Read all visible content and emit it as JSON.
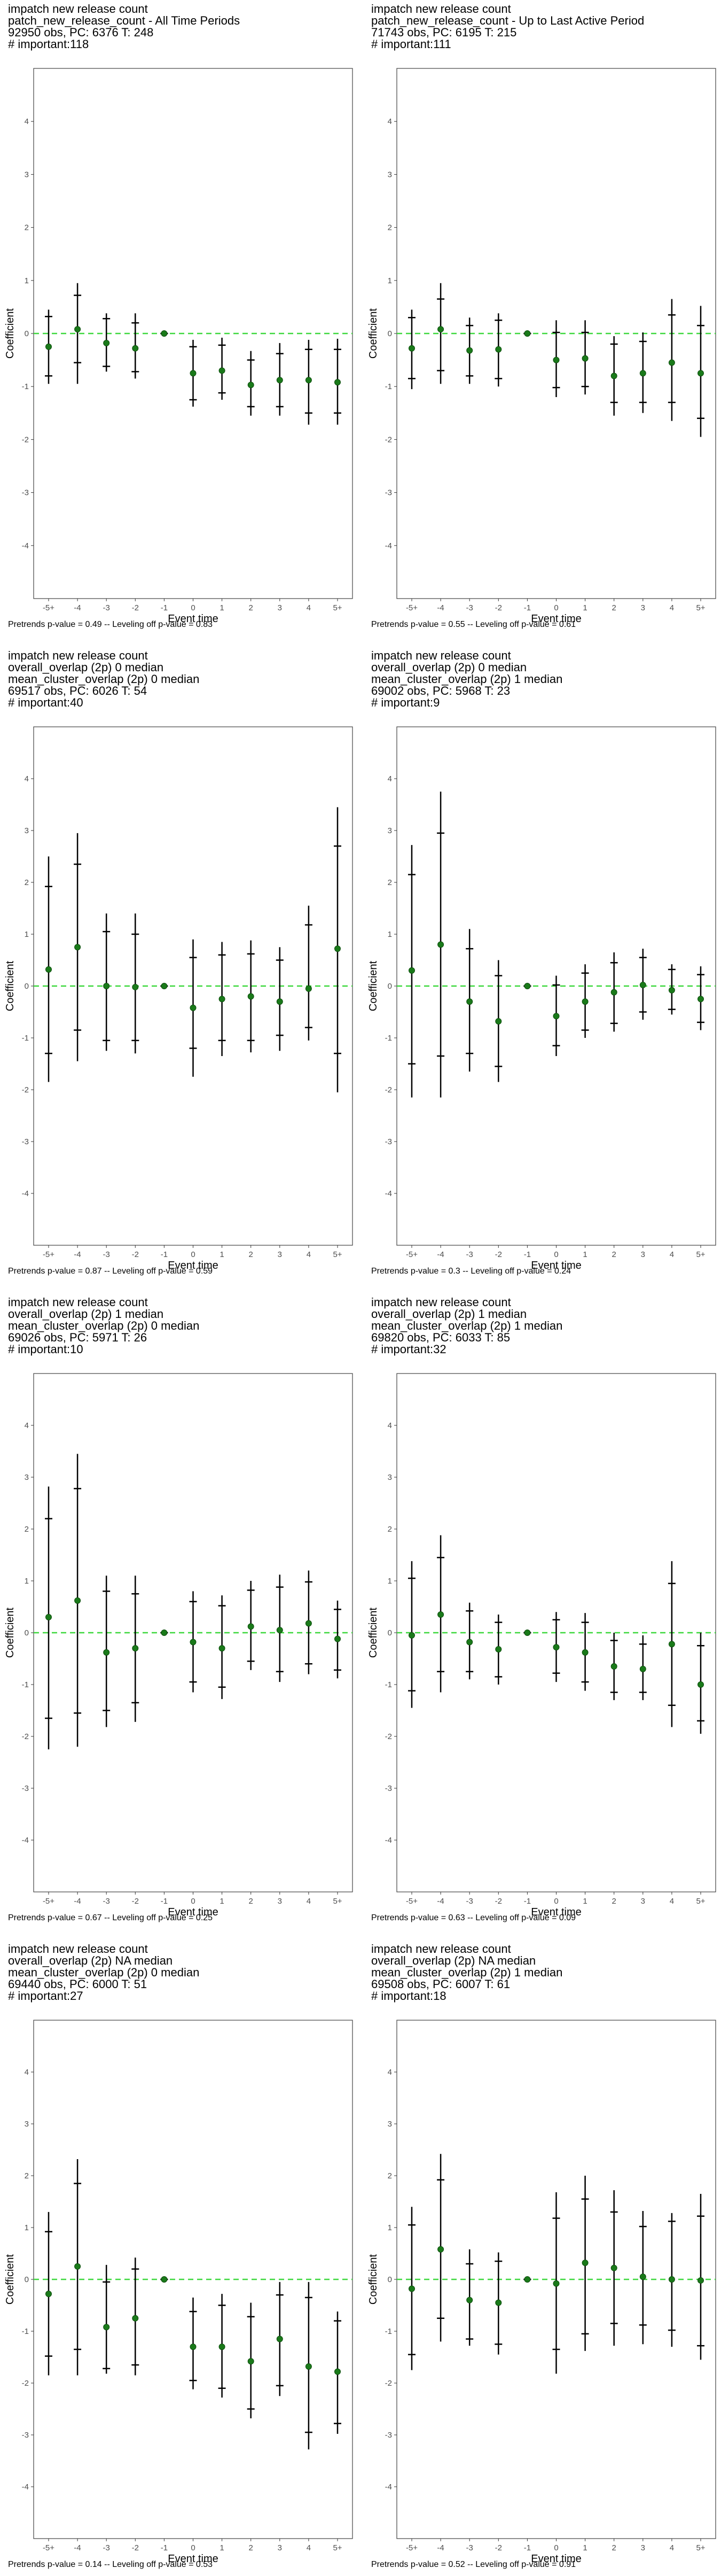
{
  "chart_data": [
    {
      "type": "scatter",
      "title": "impatch new release count",
      "subtitle_lines": [
        "patch_new_release_count - All Time Periods",
        "92950 obs, PC: 6376 T: 248",
        "# important:118"
      ],
      "xlabel": "Event time",
      "ylabel": "Coefficient",
      "categories": [
        "-5+",
        "-4",
        "-3",
        "-2",
        "-1",
        "0",
        "1",
        "2",
        "3",
        "4",
        "5+"
      ],
      "ylim": [
        -5,
        5
      ],
      "yticks": [
        -4,
        -3,
        -2,
        -1,
        0,
        1,
        2,
        3,
        4
      ],
      "reference_line": 0,
      "series": [
        {
          "values": [
            -0.25,
            0.08,
            -0.18,
            -0.28,
            0.0,
            -0.75,
            -0.7,
            -0.97,
            -0.88,
            -0.88,
            -0.92
          ],
          "ci95_low": [
            -0.95,
            -0.95,
            -0.72,
            -0.85,
            0.0,
            -1.38,
            -1.25,
            -1.55,
            -1.55,
            -1.72,
            -1.72
          ],
          "ci95_high": [
            0.45,
            0.95,
            0.38,
            0.38,
            0.0,
            -0.12,
            -0.08,
            -0.33,
            -0.18,
            -0.12,
            -0.1
          ],
          "ci90_low": [
            -0.8,
            -0.55,
            -0.62,
            -0.72,
            0.0,
            -1.25,
            -1.12,
            -1.38,
            -1.38,
            -1.5,
            -1.5
          ],
          "ci90_high": [
            0.32,
            0.72,
            0.28,
            0.2,
            0.0,
            -0.25,
            -0.22,
            -0.5,
            -0.38,
            -0.3,
            -0.3
          ]
        }
      ],
      "footer": "Pretrends p-value = 0.49 -- Leveling off p-value = 0.83"
    },
    {
      "type": "scatter",
      "title": "impatch new release count",
      "subtitle_lines": [
        "patch_new_release_count - Up to Last Active Period",
        "71743 obs, PC: 6195 T: 215",
        "# important:111"
      ],
      "xlabel": "Event time",
      "ylabel": "Coefficient",
      "categories": [
        "-5+",
        "-4",
        "-3",
        "-2",
        "-1",
        "0",
        "1",
        "2",
        "3",
        "4",
        "5+"
      ],
      "ylim": [
        -5,
        5
      ],
      "yticks": [
        -4,
        -3,
        -2,
        -1,
        0,
        1,
        2,
        3,
        4
      ],
      "reference_line": 0,
      "series": [
        {
          "values": [
            -0.28,
            0.08,
            -0.32,
            -0.3,
            0.0,
            -0.5,
            -0.47,
            -0.8,
            -0.75,
            -0.55,
            -0.75
          ],
          "ci95_low": [
            -1.05,
            -0.95,
            -0.95,
            -1.0,
            0.0,
            -1.2,
            -1.15,
            -1.55,
            -1.5,
            -1.65,
            -1.95
          ],
          "ci95_high": [
            0.45,
            0.95,
            0.3,
            0.38,
            0.0,
            0.25,
            0.25,
            -0.05,
            0.02,
            0.65,
            0.52
          ],
          "ci90_low": [
            -0.85,
            -0.7,
            -0.8,
            -0.85,
            0.0,
            -1.02,
            -1.0,
            -1.3,
            -1.3,
            -1.3,
            -1.6
          ],
          "ci90_high": [
            0.3,
            0.65,
            0.15,
            0.25,
            0.0,
            0.02,
            0.02,
            -0.2,
            -0.15,
            0.35,
            0.15
          ]
        }
      ],
      "footer": "Pretrends p-value = 0.55 -- Leveling off p-value = 0.61"
    },
    {
      "type": "scatter",
      "title": "impatch new release count",
      "subtitle_lines": [
        "overall_overlap (2p) 0 median",
        "mean_cluster_overlap (2p) 0 median",
        "69517 obs, PC: 6026 T: 54",
        "# important:40"
      ],
      "xlabel": "Event time",
      "ylabel": "Coefficient",
      "categories": [
        "-5+",
        "-4",
        "-3",
        "-2",
        "-1",
        "0",
        "1",
        "2",
        "3",
        "4",
        "5+"
      ],
      "ylim": [
        -5,
        5
      ],
      "yticks": [
        -4,
        -3,
        -2,
        -1,
        0,
        1,
        2,
        3,
        4
      ],
      "reference_line": 0,
      "series": [
        {
          "values": [
            0.32,
            0.75,
            0.0,
            -0.02,
            0.0,
            -0.42,
            -0.25,
            -0.2,
            -0.3,
            -0.05,
            0.72
          ],
          "ci95_low": [
            -1.85,
            -1.45,
            -1.25,
            -1.3,
            0.0,
            -1.75,
            -1.35,
            -1.28,
            -1.25,
            -1.05,
            -2.05
          ],
          "ci95_high": [
            2.5,
            2.95,
            1.4,
            1.4,
            0.0,
            0.9,
            0.85,
            0.88,
            0.75,
            1.55,
            3.45
          ],
          "ci90_low": [
            -1.3,
            -0.85,
            -1.05,
            -1.05,
            0.0,
            -1.2,
            -1.05,
            -1.05,
            -0.95,
            -0.8,
            -1.3
          ],
          "ci90_high": [
            1.92,
            2.35,
            1.05,
            1.0,
            0.0,
            0.55,
            0.6,
            0.62,
            0.5,
            1.18,
            2.7
          ]
        }
      ],
      "footer": "Pretrends p-value = 0.87 -- Leveling off p-value = 0.59"
    },
    {
      "type": "scatter",
      "title": "impatch new release count",
      "subtitle_lines": [
        "overall_overlap (2p) 0 median",
        "mean_cluster_overlap (2p) 1 median",
        "69002 obs, PC: 5968 T: 23",
        "# important:9"
      ],
      "xlabel": "Event time",
      "ylabel": "Coefficient",
      "categories": [
        "-5+",
        "-4",
        "-3",
        "-2",
        "-1",
        "0",
        "1",
        "2",
        "3",
        "4",
        "5+"
      ],
      "ylim": [
        -5,
        5
      ],
      "yticks": [
        -4,
        -3,
        -2,
        -1,
        0,
        1,
        2,
        3,
        4
      ],
      "reference_line": 0,
      "series": [
        {
          "values": [
            0.3,
            0.8,
            -0.3,
            -0.68,
            0.0,
            -0.58,
            -0.3,
            -0.12,
            0.02,
            -0.08,
            -0.25
          ],
          "ci95_low": [
            -2.15,
            -2.15,
            -1.65,
            -1.85,
            0.0,
            -1.35,
            -1.0,
            -0.88,
            -0.65,
            -0.55,
            -0.85
          ],
          "ci95_high": [
            2.72,
            3.75,
            1.1,
            0.5,
            0.0,
            0.2,
            0.42,
            0.65,
            0.72,
            0.42,
            0.38
          ],
          "ci90_low": [
            -1.5,
            -1.35,
            -1.3,
            -1.55,
            0.0,
            -1.15,
            -0.85,
            -0.72,
            -0.5,
            -0.45,
            -0.7
          ],
          "ci90_high": [
            2.15,
            2.95,
            0.72,
            0.2,
            0.0,
            0.02,
            0.25,
            0.45,
            0.55,
            0.32,
            0.22
          ]
        }
      ],
      "footer": "Pretrends p-value = 0.3 -- Leveling off p-value = 0.24"
    },
    {
      "type": "scatter",
      "title": "impatch new release count",
      "subtitle_lines": [
        "overall_overlap (2p) 1 median",
        "mean_cluster_overlap (2p) 0 median",
        "69026 obs, PC: 5971 T: 26",
        "# important:10"
      ],
      "xlabel": "Event time",
      "ylabel": "Coefficient",
      "categories": [
        "-5+",
        "-4",
        "-3",
        "-2",
        "-1",
        "0",
        "1",
        "2",
        "3",
        "4",
        "5+"
      ],
      "ylim": [
        -5,
        5
      ],
      "yticks": [
        -4,
        -3,
        -2,
        -1,
        0,
        1,
        2,
        3,
        4
      ],
      "reference_line": 0,
      "series": [
        {
          "values": [
            0.3,
            0.62,
            -0.38,
            -0.3,
            0.0,
            -0.18,
            -0.3,
            0.12,
            0.05,
            0.18,
            -0.12
          ],
          "ci95_low": [
            -2.25,
            -2.2,
            -1.82,
            -1.72,
            0.0,
            -1.15,
            -1.28,
            -0.72,
            -0.95,
            -0.8,
            -0.88
          ],
          "ci95_high": [
            2.82,
            3.45,
            1.1,
            1.1,
            0.0,
            0.8,
            0.72,
            1.0,
            1.12,
            1.2,
            0.62
          ],
          "ci90_low": [
            -1.65,
            -1.55,
            -1.5,
            -1.35,
            0.0,
            -0.95,
            -1.05,
            -0.55,
            -0.75,
            -0.6,
            -0.72
          ],
          "ci90_high": [
            2.2,
            2.78,
            0.8,
            0.75,
            0.0,
            0.6,
            0.52,
            0.82,
            0.88,
            0.98,
            0.45
          ]
        }
      ],
      "footer": "Pretrends p-value = 0.67 -- Leveling off p-value = 0.25"
    },
    {
      "type": "scatter",
      "title": "impatch new release count",
      "subtitle_lines": [
        "overall_overlap (2p) 1 median",
        "mean_cluster_overlap (2p) 1 median",
        "69820 obs, PC: 6033 T: 85",
        "# important:32"
      ],
      "xlabel": "Event time",
      "ylabel": "Coefficient",
      "categories": [
        "-5+",
        "-4",
        "-3",
        "-2",
        "-1",
        "0",
        "1",
        "2",
        "3",
        "4",
        "5+"
      ],
      "ylim": [
        -5,
        5
      ],
      "yticks": [
        -4,
        -3,
        -2,
        -1,
        0,
        1,
        2,
        3,
        4
      ],
      "reference_line": 0,
      "series": [
        {
          "values": [
            -0.05,
            0.35,
            -0.18,
            -0.32,
            0.0,
            -0.28,
            -0.38,
            -0.65,
            -0.7,
            -0.22,
            -1.0
          ],
          "ci95_low": [
            -1.45,
            -1.15,
            -0.9,
            -1.0,
            0.0,
            -0.95,
            -1.12,
            -1.3,
            -1.3,
            -1.82,
            -1.95
          ],
          "ci95_high": [
            1.38,
            1.88,
            0.58,
            0.35,
            0.0,
            0.4,
            0.38,
            0.0,
            -0.05,
            1.38,
            0.0
          ],
          "ci90_low": [
            -1.12,
            -0.75,
            -0.75,
            -0.85,
            0.0,
            -0.78,
            -0.95,
            -1.15,
            -1.15,
            -1.4,
            -1.7
          ],
          "ci90_high": [
            1.05,
            1.45,
            0.42,
            0.2,
            0.0,
            0.25,
            0.2,
            -0.15,
            -0.22,
            0.95,
            -0.25
          ]
        }
      ],
      "footer": "Pretrends p-value = 0.63 -- Leveling off p-value = 0.09"
    },
    {
      "type": "scatter",
      "title": "impatch new release count",
      "subtitle_lines": [
        "overall_overlap (2p) NA median",
        "mean_cluster_overlap (2p) 0 median",
        "69440 obs, PC: 6000 T: 51",
        "# important:27"
      ],
      "xlabel": "Event time",
      "ylabel": "Coefficient",
      "categories": [
        "-5+",
        "-4",
        "-3",
        "-2",
        "-1",
        "0",
        "1",
        "2",
        "3",
        "4",
        "5+"
      ],
      "ylim": [
        -5,
        5
      ],
      "yticks": [
        -4,
        -3,
        -2,
        -1,
        0,
        1,
        2,
        3,
        4
      ],
      "reference_line": 0,
      "series": [
        {
          "values": [
            -0.28,
            0.25,
            -0.92,
            -0.75,
            0.0,
            -1.3,
            -1.3,
            -1.58,
            -1.15,
            -1.68,
            -1.78
          ],
          "ci95_low": [
            -1.85,
            -1.85,
            -1.82,
            -1.85,
            0.0,
            -2.12,
            -2.28,
            -2.68,
            -2.25,
            -3.28,
            -2.98
          ],
          "ci95_high": [
            1.3,
            2.32,
            0.28,
            0.42,
            0.0,
            -0.35,
            -0.28,
            -0.45,
            -0.05,
            -0.05,
            -0.62
          ],
          "ci90_low": [
            -1.48,
            -1.35,
            -1.72,
            -1.65,
            0.0,
            -1.95,
            -2.1,
            -2.5,
            -2.05,
            -2.95,
            -2.78
          ],
          "ci90_high": [
            0.92,
            1.85,
            -0.05,
            0.2,
            0.0,
            -0.62,
            -0.5,
            -0.72,
            -0.3,
            -0.35,
            -0.8
          ]
        }
      ],
      "footer": "Pretrends p-value = 0.14 -- Leveling off p-value = 0.53"
    },
    {
      "type": "scatter",
      "title": "impatch new release count",
      "subtitle_lines": [
        "overall_overlap (2p) NA median",
        "mean_cluster_overlap (2p) 1 median",
        "69508 obs, PC: 6007 T: 61",
        "# important:18"
      ],
      "xlabel": "Event time",
      "ylabel": "Coefficient",
      "categories": [
        "-5+",
        "-4",
        "-3",
        "-2",
        "-1",
        "0",
        "1",
        "2",
        "3",
        "4",
        "5+"
      ],
      "ylim": [
        -5,
        5
      ],
      "yticks": [
        -4,
        -3,
        -2,
        -1,
        0,
        1,
        2,
        3,
        4
      ],
      "reference_line": 0,
      "series": [
        {
          "values": [
            -0.18,
            0.58,
            -0.4,
            -0.45,
            0.0,
            -0.08,
            0.32,
            0.22,
            0.05,
            0.0,
            -0.02
          ],
          "ci95_low": [
            -1.75,
            -1.2,
            -1.28,
            -1.45,
            0.0,
            -1.82,
            -1.38,
            -1.28,
            -1.25,
            -1.3,
            -1.55
          ],
          "ci95_high": [
            1.4,
            2.42,
            0.58,
            0.52,
            0.0,
            1.68,
            2.0,
            1.72,
            1.32,
            1.28,
            1.65
          ],
          "ci90_low": [
            -1.45,
            -0.75,
            -1.15,
            -1.25,
            0.0,
            -1.35,
            -1.05,
            -0.85,
            -0.88,
            -0.98,
            -1.28
          ],
          "ci90_high": [
            1.05,
            1.92,
            0.3,
            0.35,
            0.0,
            1.18,
            1.55,
            1.3,
            1.02,
            1.12,
            1.22
          ]
        }
      ],
      "footer": "Pretrends p-value = 0.52 -- Leveling off p-value = 0.91"
    }
  ]
}
